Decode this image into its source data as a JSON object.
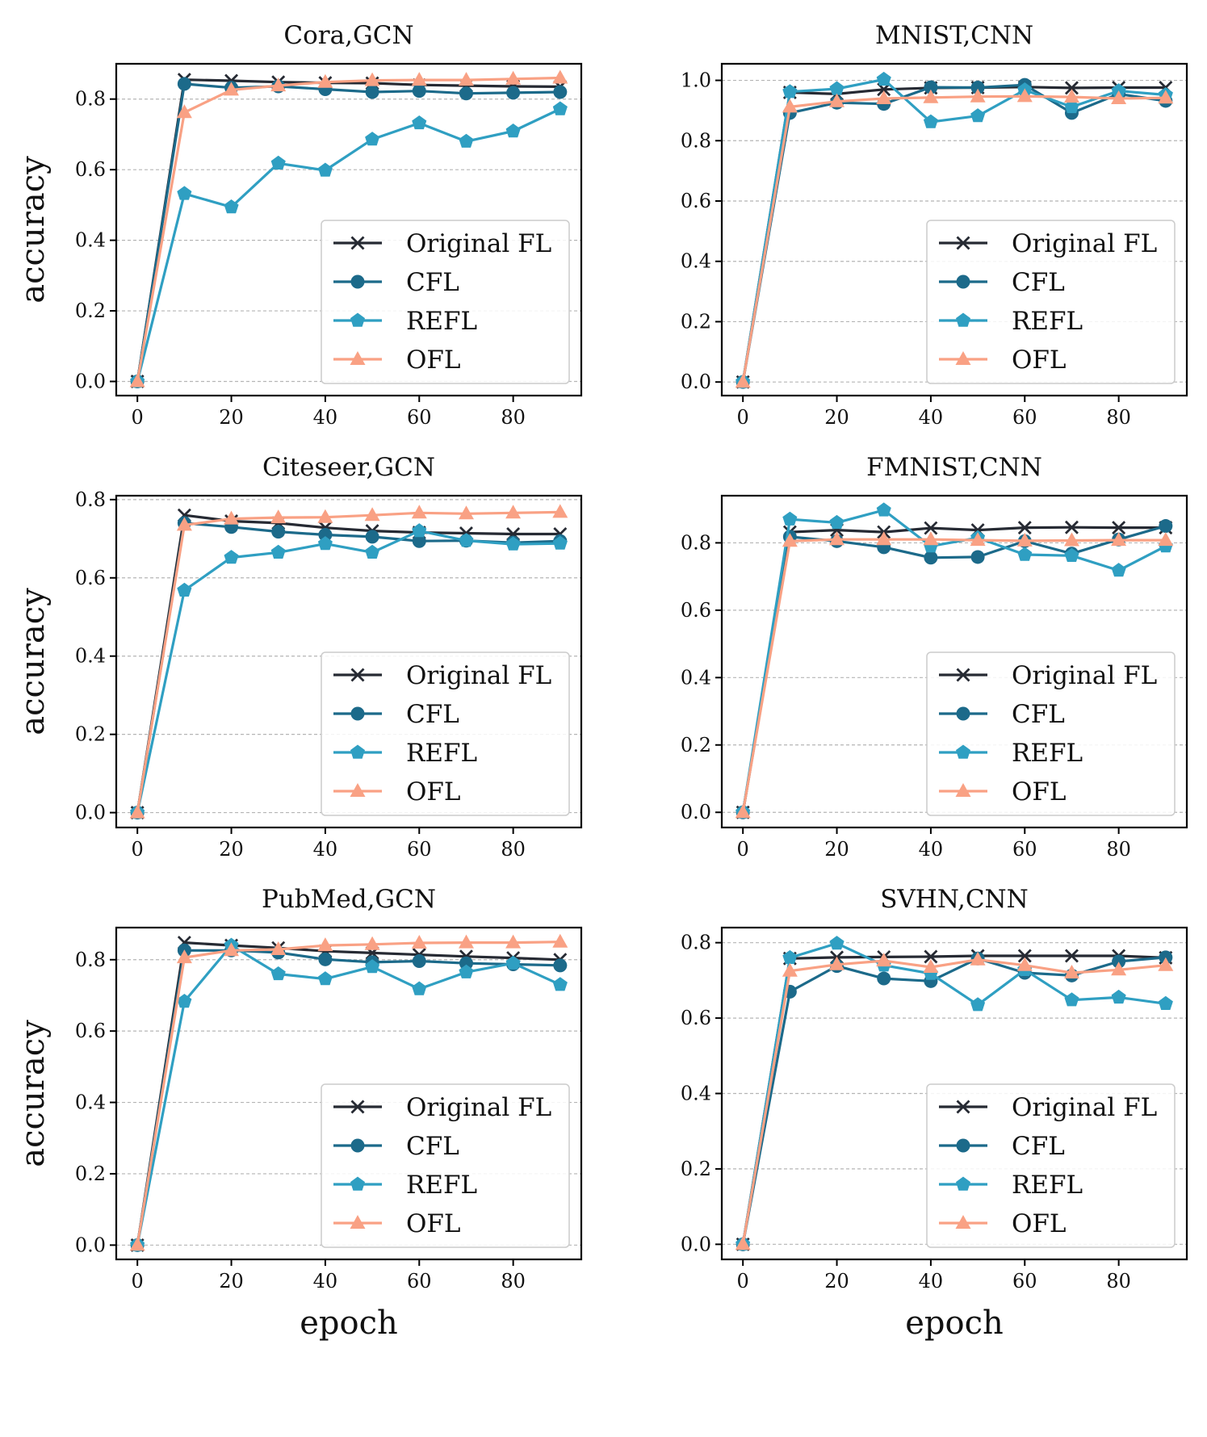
{
  "colors": {
    "Original FL": "#262a33",
    "CFL": "#1c6a8a",
    "REFL": "#2f9fc2",
    "OFL": "#f9a184"
  },
  "markers": {
    "Original FL": "x",
    "CFL": "circle",
    "REFL": "pentagon",
    "OFL": "triangle"
  },
  "chart_data": [
    {
      "type": "line",
      "title": "Cora,GCN",
      "xlabel": "",
      "ylabel": "accuracy",
      "x": [
        0,
        10,
        20,
        30,
        40,
        50,
        60,
        70,
        80,
        90
      ],
      "xticks": [
        0,
        20,
        40,
        60,
        80
      ],
      "xlim": [
        -4.5,
        94.5
      ],
      "yticks": [
        "0.0",
        "0.2",
        "0.4",
        "0.6",
        "0.8"
      ],
      "ylim": [
        -0.04,
        0.9
      ],
      "grid": true,
      "legend": "lower-right",
      "series": [
        {
          "name": "Original FL",
          "values": [
            0,
            0.855,
            0.852,
            0.848,
            0.846,
            0.845,
            0.84,
            0.838,
            0.836,
            0.835
          ]
        },
        {
          "name": "CFL",
          "values": [
            0,
            0.843,
            0.832,
            0.836,
            0.828,
            0.82,
            0.823,
            0.816,
            0.818,
            0.82
          ]
        },
        {
          "name": "REFL",
          "values": [
            0,
            0.532,
            0.494,
            0.618,
            0.598,
            0.686,
            0.732,
            0.68,
            0.709,
            0.772
          ]
        },
        {
          "name": "OFL",
          "values": [
            0,
            0.762,
            0.826,
            0.838,
            0.848,
            0.853,
            0.854,
            0.854,
            0.857,
            0.86
          ]
        }
      ]
    },
    {
      "type": "line",
      "title": "MNIST,CNN",
      "xlabel": "",
      "ylabel": "",
      "x": [
        0,
        10,
        20,
        30,
        40,
        50,
        60,
        70,
        80,
        90
      ],
      "xticks": [
        0,
        20,
        40,
        60,
        80
      ],
      "xlim": [
        -4.5,
        94.5
      ],
      "yticks": [
        "0.0",
        "0.2",
        "0.4",
        "0.6",
        "0.8",
        "1.0"
      ],
      "ylim": [
        -0.045,
        1.055
      ],
      "grid": true,
      "legend": "lower-right",
      "series": [
        {
          "name": "Original FL",
          "values": [
            0,
            0.96,
            0.955,
            0.97,
            0.975,
            0.976,
            0.978,
            0.975,
            0.976,
            0.976
          ]
        },
        {
          "name": "CFL",
          "values": [
            0,
            0.892,
            0.926,
            0.922,
            0.977,
            0.976,
            0.985,
            0.892,
            0.955,
            0.932
          ]
        },
        {
          "name": "REFL",
          "values": [
            0,
            0.962,
            0.972,
            1.003,
            0.862,
            0.882,
            0.968,
            0.912,
            0.965,
            0.952
          ]
        },
        {
          "name": "OFL",
          "values": [
            0,
            0.912,
            0.93,
            0.94,
            0.943,
            0.946,
            0.947,
            0.945,
            0.94,
            0.942
          ]
        }
      ]
    },
    {
      "type": "line",
      "title": "Citeseer,GCN",
      "xlabel": "",
      "ylabel": "accuracy",
      "x": [
        0,
        10,
        20,
        30,
        40,
        50,
        60,
        70,
        80,
        90
      ],
      "xticks": [
        0,
        20,
        40,
        60,
        80
      ],
      "xlim": [
        -4.5,
        94.5
      ],
      "yticks": [
        "0.0",
        "0.2",
        "0.4",
        "0.6",
        "0.8"
      ],
      "ylim": [
        -0.038,
        0.81
      ],
      "grid": true,
      "legend": "lower-right",
      "series": [
        {
          "name": "Original FL",
          "values": [
            0,
            0.76,
            0.745,
            0.74,
            0.728,
            0.72,
            0.716,
            0.714,
            0.712,
            0.712
          ]
        },
        {
          "name": "CFL",
          "values": [
            0,
            0.74,
            0.73,
            0.718,
            0.71,
            0.705,
            0.694,
            0.695,
            0.69,
            0.694
          ]
        },
        {
          "name": "REFL",
          "values": [
            0,
            0.568,
            0.652,
            0.665,
            0.687,
            0.665,
            0.72,
            0.695,
            0.686,
            0.688
          ]
        },
        {
          "name": "OFL",
          "values": [
            0,
            0.735,
            0.751,
            0.754,
            0.755,
            0.76,
            0.766,
            0.764,
            0.766,
            0.768
          ]
        }
      ]
    },
    {
      "type": "line",
      "title": "FMNIST,CNN",
      "xlabel": "",
      "ylabel": "",
      "x": [
        0,
        10,
        20,
        30,
        40,
        50,
        60,
        70,
        80,
        90
      ],
      "xticks": [
        0,
        20,
        40,
        60,
        80
      ],
      "xlim": [
        -4.5,
        94.5
      ],
      "yticks": [
        "0.0",
        "0.2",
        "0.4",
        "0.6",
        "0.8"
      ],
      "ylim": [
        -0.045,
        0.94
      ],
      "grid": true,
      "legend": "lower-right",
      "series": [
        {
          "name": "Original FL",
          "values": [
            0,
            0.832,
            0.838,
            0.832,
            0.844,
            0.838,
            0.845,
            0.846,
            0.845,
            0.845
          ]
        },
        {
          "name": "CFL",
          "values": [
            0,
            0.818,
            0.805,
            0.787,
            0.756,
            0.758,
            0.805,
            0.768,
            0.81,
            0.85
          ]
        },
        {
          "name": "REFL",
          "values": [
            0,
            0.87,
            0.86,
            0.897,
            0.79,
            0.815,
            0.765,
            0.762,
            0.718,
            0.79
          ]
        },
        {
          "name": "OFL",
          "values": [
            0,
            0.805,
            0.81,
            0.81,
            0.81,
            0.808,
            0.806,
            0.807,
            0.808,
            0.808
          ]
        }
      ]
    },
    {
      "type": "line",
      "title": "PubMed,GCN",
      "xlabel": "epoch",
      "ylabel": "accuracy",
      "x": [
        0,
        10,
        20,
        30,
        40,
        50,
        60,
        70,
        80,
        90
      ],
      "xticks": [
        0,
        20,
        40,
        60,
        80
      ],
      "xlim": [
        -4.5,
        94.5
      ],
      "yticks": [
        "0.0",
        "0.2",
        "0.4",
        "0.6",
        "0.8"
      ],
      "ylim": [
        -0.04,
        0.89
      ],
      "grid": true,
      "legend": "lower-right",
      "series": [
        {
          "name": "Original FL",
          "values": [
            0,
            0.848,
            0.84,
            0.833,
            0.824,
            0.819,
            0.814,
            0.809,
            0.805,
            0.8
          ]
        },
        {
          "name": "CFL",
          "values": [
            0,
            0.826,
            0.826,
            0.82,
            0.801,
            0.793,
            0.796,
            0.79,
            0.787,
            0.784
          ]
        },
        {
          "name": "REFL",
          "values": [
            0,
            0.683,
            0.84,
            0.76,
            0.746,
            0.78,
            0.718,
            0.765,
            0.79,
            0.73
          ]
        },
        {
          "name": "OFL",
          "values": [
            0,
            0.806,
            0.826,
            0.829,
            0.84,
            0.843,
            0.847,
            0.848,
            0.848,
            0.85
          ]
        }
      ]
    },
    {
      "type": "line",
      "title": "SVHN,CNN",
      "xlabel": "epoch",
      "ylabel": "",
      "x": [
        0,
        10,
        20,
        30,
        40,
        50,
        60,
        70,
        80,
        90
      ],
      "xticks": [
        0,
        20,
        40,
        60,
        80
      ],
      "xlim": [
        -4.5,
        94.5
      ],
      "yticks": [
        "0.0",
        "0.2",
        "0.4",
        "0.6",
        "0.8"
      ],
      "ylim": [
        -0.04,
        0.84
      ],
      "grid": true,
      "legend": "lower-right",
      "series": [
        {
          "name": "Original FL",
          "values": [
            0,
            0.758,
            0.761,
            0.762,
            0.763,
            0.765,
            0.765,
            0.765,
            0.765,
            0.76
          ]
        },
        {
          "name": "CFL",
          "values": [
            0,
            0.67,
            0.738,
            0.705,
            0.698,
            0.758,
            0.72,
            0.713,
            0.75,
            0.761
          ]
        },
        {
          "name": "REFL",
          "values": [
            0,
            0.76,
            0.798,
            0.74,
            0.718,
            0.635,
            0.728,
            0.648,
            0.655,
            0.638
          ]
        },
        {
          "name": "OFL",
          "values": [
            0,
            0.725,
            0.742,
            0.752,
            0.735,
            0.755,
            0.74,
            0.72,
            0.728,
            0.74
          ]
        }
      ]
    }
  ]
}
